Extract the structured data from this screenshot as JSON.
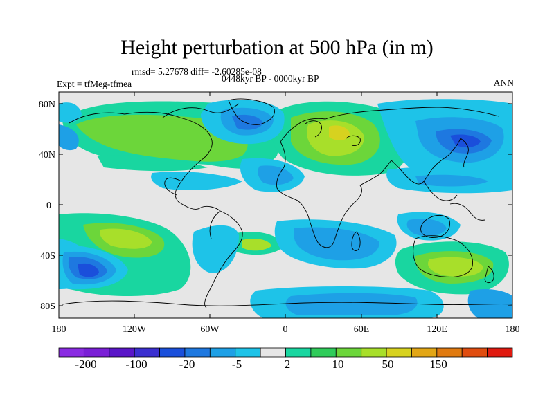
{
  "title": "Height perturbation at 500 hPa (in m)",
  "stats": "rmsd= 5.27678 diff= -2.60285e-08",
  "period": "0448kyr BP - 0000kyr BP",
  "experiment": "Expt = tfMeg-tfmea",
  "season": "ANN",
  "axes": {
    "lat_labels": [
      "80N",
      "40N",
      "0",
      "40S",
      "80S"
    ],
    "lon_labels": [
      "180",
      "120W",
      "60W",
      "0",
      "60E",
      "120E",
      "180"
    ]
  },
  "colorbar": {
    "colors": [
      "#8a2be2",
      "#7a1fd6",
      "#5a16c8",
      "#3b2fd0",
      "#1a4fdb",
      "#1e78e0",
      "#1ea0e6",
      "#1ec3e8",
      "#e6e6e6",
      "#19d6a0",
      "#2fcc5a",
      "#6cd63a",
      "#a8df2a",
      "#d7d21f",
      "#e2a615",
      "#e07a10",
      "#e04d10",
      "#e01a10"
    ],
    "labels": [
      "-200",
      "-100",
      "-20",
      "-5",
      "2",
      "10",
      "50",
      "150"
    ]
  }
}
